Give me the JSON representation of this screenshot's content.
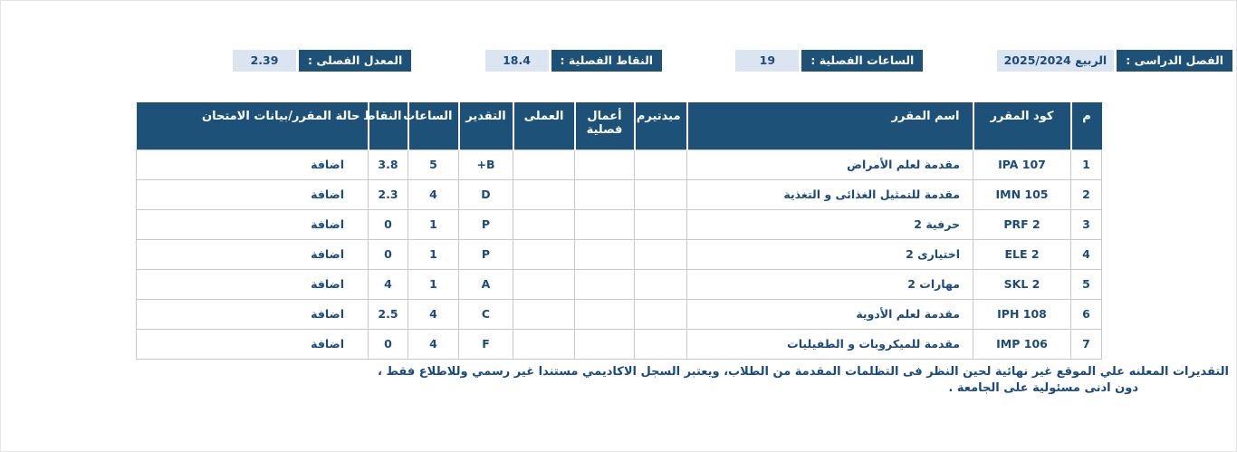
{
  "summary": {
    "items": [
      {
        "label": "الفصل الدراسى :",
        "value": "الربيع 2025/2024"
      },
      {
        "label": "الساعات الفصلية :",
        "value": "19"
      },
      {
        "label": "النقاط الفصلية :",
        "value": "18.4"
      },
      {
        "label": "المعدل الفصلى :",
        "value": "2.39"
      }
    ]
  },
  "table": {
    "columns": [
      "م",
      "كود المقرر",
      "اسم المقرر",
      "ميدتيرم",
      "أعمال فصلية",
      "العملى",
      "التقدير",
      "الساعات",
      "النقاط",
      "حالة المقرر/بيانات الامتحان"
    ],
    "rows": [
      {
        "num": "1",
        "code": "IPA 107",
        "name": "مقدمة لعلم الأمراض",
        "midterm": "",
        "coursework": "",
        "practical": "",
        "grade": "B+",
        "hours": "5",
        "points": "3.8",
        "status": "اضافة"
      },
      {
        "num": "2",
        "code": "IMN 105",
        "name": "مقدمة للتمثيل الغذائى و التغذية",
        "midterm": "",
        "coursework": "",
        "practical": "",
        "grade": "D",
        "hours": "4",
        "points": "2.3",
        "status": "اضافة"
      },
      {
        "num": "3",
        "code": "PRF 2",
        "name": "حرفية 2",
        "midterm": "",
        "coursework": "",
        "practical": "",
        "grade": "P",
        "hours": "1",
        "points": "0",
        "status": "اضافة"
      },
      {
        "num": "4",
        "code": "ELE 2",
        "name": "اختيارى 2",
        "midterm": "",
        "coursework": "",
        "practical": "",
        "grade": "P",
        "hours": "1",
        "points": "0",
        "status": "اضافة"
      },
      {
        "num": "5",
        "code": "SKL 2",
        "name": "مهارات 2",
        "midterm": "",
        "coursework": "",
        "practical": "",
        "grade": "A",
        "hours": "1",
        "points": "4",
        "status": "اضافة"
      },
      {
        "num": "6",
        "code": "IPH 108",
        "name": "مقدمة لعلم الأدوية",
        "midterm": "",
        "coursework": "",
        "practical": "",
        "grade": "C",
        "hours": "4",
        "points": "2.5",
        "status": "اضافة"
      },
      {
        "num": "7",
        "code": "IMP 106",
        "name": "مقدمة للميكروبات و الطفيليات",
        "midterm": "",
        "coursework": "",
        "practical": "",
        "grade": "F",
        "hours": "4",
        "points": "0",
        "status": "اضافة"
      }
    ]
  },
  "footer": {
    "line1": "التقديرات المعلنه علي الموقع غير نهائية لحين النظر فى التظلمات المقدمة من الطلاب، ويعتبر السجل الاكاديمي مستندا غير رسمي وللاطلاع فقط ،",
    "line2": "دون ادنى مسئولية على الجامعة ."
  },
  "colors": {
    "navy": "#1e5177",
    "light_blue": "#dbe5f1",
    "text_navy": "#1b4a7c",
    "border_gray": "#c9c9c9"
  }
}
